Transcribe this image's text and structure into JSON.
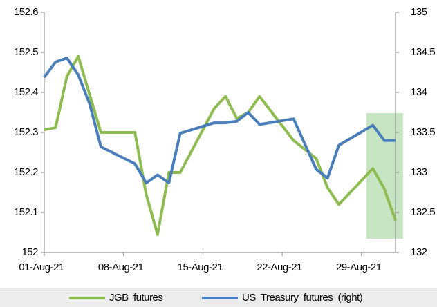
{
  "chart_data": {
    "type": "line",
    "xlim": [
      "2021-08-01",
      "2021-09-01"
    ],
    "xticks": [
      {
        "value": "2021-08-01",
        "label": "01-Aug-21"
      },
      {
        "value": "2021-08-08",
        "label": "08-Aug-21"
      },
      {
        "value": "2021-08-15",
        "label": "15-Aug-21"
      },
      {
        "value": "2021-08-22",
        "label": "22-Aug-21"
      },
      {
        "value": "2021-08-29",
        "label": "29-Aug-21"
      }
    ],
    "ylim": [
      152,
      152.6
    ],
    "yticks": [
      152,
      152.1,
      152.2,
      152.3,
      152.4,
      152.5,
      152.6
    ],
    "y2lim": [
      132,
      135
    ],
    "y2ticks": [
      132,
      132.5,
      133,
      133.5,
      134,
      134.5,
      135
    ],
    "legend": "bottom",
    "series": [
      {
        "name": "JGB  futures",
        "color": "#8fbc52",
        "x": [
          "2021-08-01",
          "2021-08-02",
          "2021-08-03",
          "2021-08-04",
          "2021-08-06",
          "2021-08-09",
          "2021-08-10",
          "2021-08-11",
          "2021-08-12",
          "2021-08-13",
          "2021-08-16",
          "2021-08-17",
          "2021-08-18",
          "2021-08-19",
          "2021-08-20",
          "2021-08-23",
          "2021-08-25",
          "2021-08-26",
          "2021-08-27",
          "2021-08-30",
          "2021-08-31",
          "2021-09-01"
        ],
        "values": [
          152.307,
          152.312,
          152.44,
          152.49,
          152.3,
          152.3,
          152.145,
          152.045,
          152.2,
          152.2,
          152.36,
          152.39,
          152.335,
          152.35,
          152.39,
          152.28,
          152.235,
          152.162,
          152.12,
          152.21,
          152.16,
          152.08
        ]
      },
      {
        "name": "US  Treasury  futures  (right)",
        "color": "#4a7ebb",
        "axis": "y2",
        "x": [
          "2021-08-01",
          "2021-08-02",
          "2021-08-03",
          "2021-08-04",
          "2021-08-05",
          "2021-08-06",
          "2021-08-09",
          "2021-08-10",
          "2021-08-11",
          "2021-08-12",
          "2021-08-13",
          "2021-08-16",
          "2021-08-17",
          "2021-08-18",
          "2021-08-19",
          "2021-08-20",
          "2021-08-23",
          "2021-08-25",
          "2021-08-26",
          "2021-08-27",
          "2021-08-30",
          "2021-08-31",
          "2021-09-01"
        ],
        "values": [
          134.19,
          134.38,
          134.43,
          134.22,
          133.86,
          133.32,
          133.11,
          132.87,
          132.97,
          132.87,
          133.49,
          133.62,
          133.62,
          133.64,
          133.75,
          133.6,
          133.67,
          133.04,
          132.93,
          133.34,
          133.59,
          133.4,
          133.4
        ]
      }
    ]
  }
}
